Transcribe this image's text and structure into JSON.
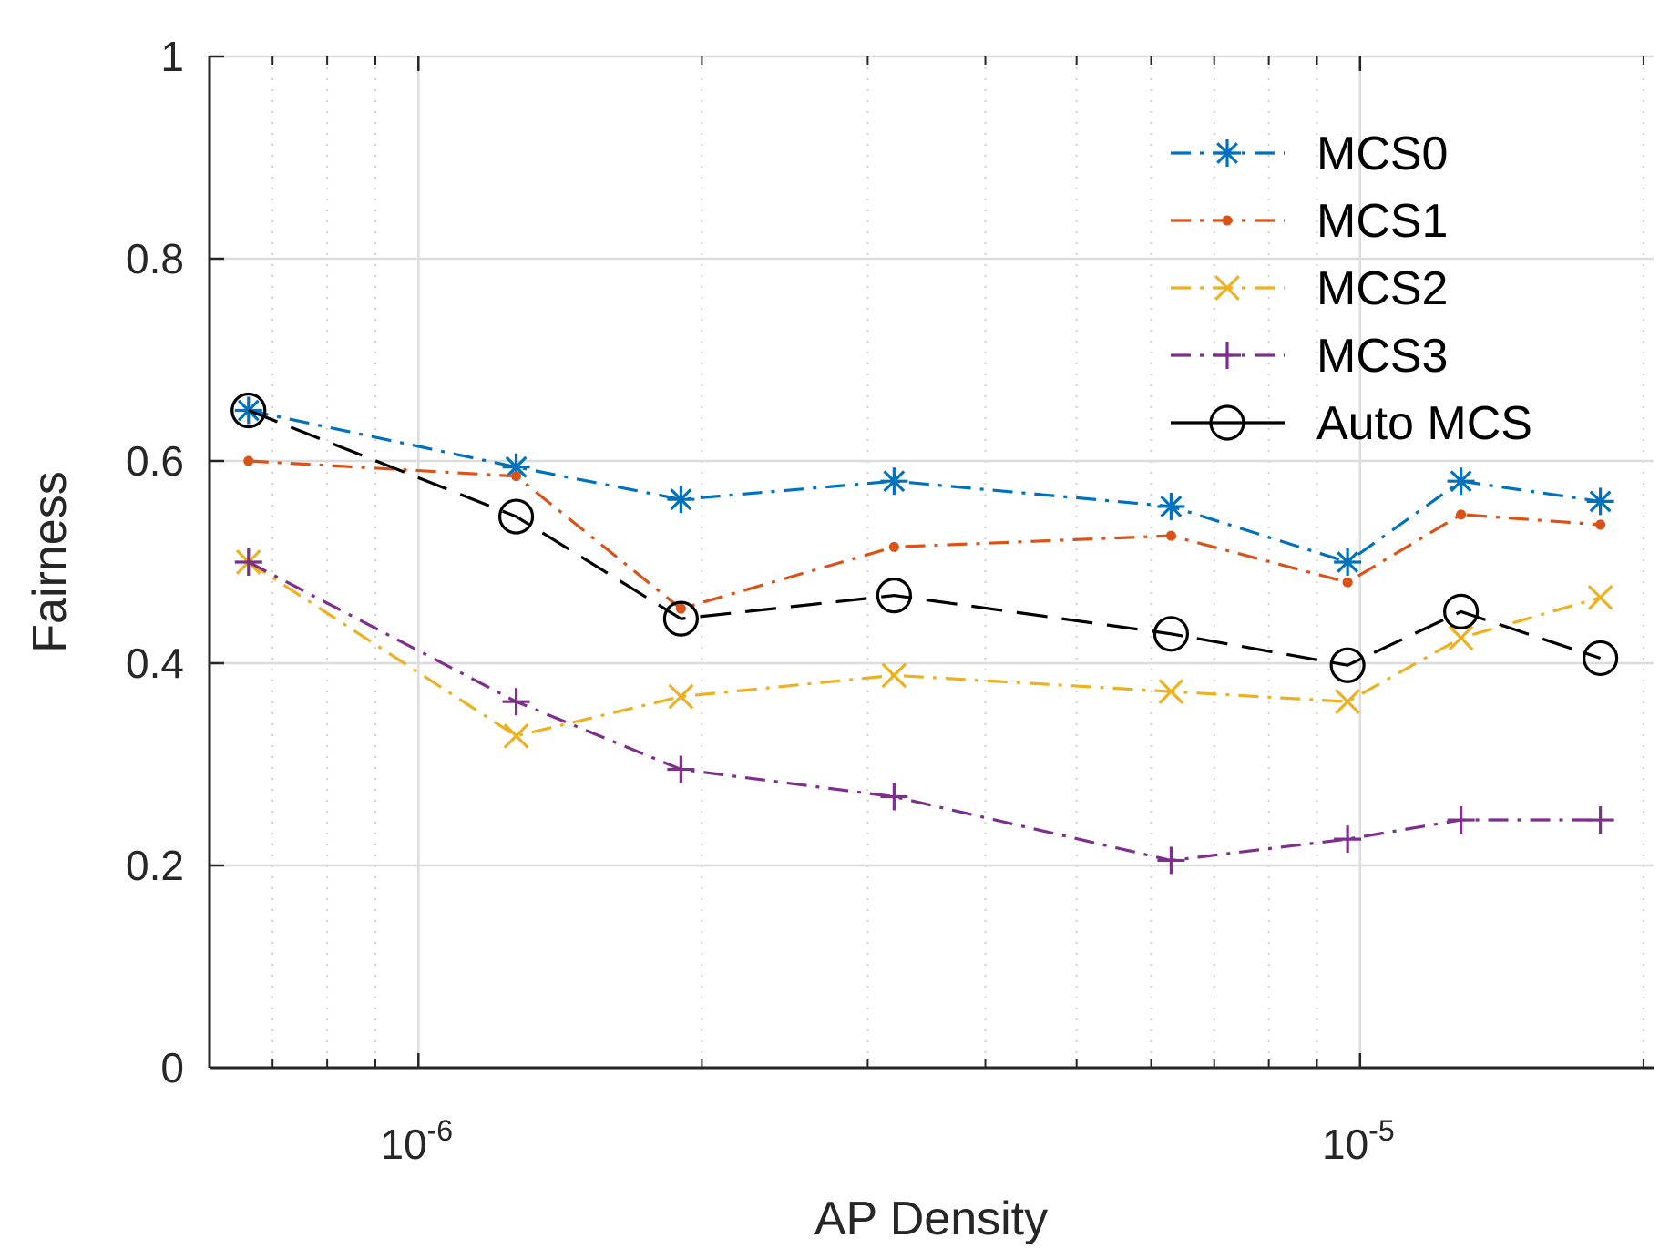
{
  "chart_data": {
    "type": "line",
    "xscale": "log",
    "xlabel": "AP Density",
    "ylabel": "Fairness",
    "xlim": [
      6e-07,
      2.05e-05
    ],
    "ylim": [
      0,
      1
    ],
    "grid": true,
    "legend_position": "top-right",
    "x": [
      6.6e-07,
      1.27e-06,
      1.9e-06,
      3.2e-06,
      6.3e-06,
      9.7e-06,
      1.28e-05,
      1.8e-05
    ],
    "xticks": [
      {
        "value": 1e-06,
        "base": "10",
        "exp": "-6"
      },
      {
        "value": 1e-05,
        "base": "10",
        "exp": "-5"
      }
    ],
    "yticks": [
      {
        "value": 0,
        "label": "0"
      },
      {
        "value": 0.2,
        "label": "0.2"
      },
      {
        "value": 0.4,
        "label": "0.4"
      },
      {
        "value": 0.6,
        "label": "0.6"
      },
      {
        "value": 0.8,
        "label": "0.8"
      },
      {
        "value": 1,
        "label": "1"
      }
    ],
    "series": [
      {
        "name": "MCS0",
        "color": "#0072BD",
        "dash": "dashdot",
        "marker": "asterisk",
        "values": [
          0.65,
          0.594,
          0.562,
          0.58,
          0.555,
          0.5,
          0.58,
          0.56
        ]
      },
      {
        "name": "MCS1",
        "color": "#D95319",
        "dash": "dashdot",
        "marker": "dot",
        "values": [
          0.6,
          0.585,
          0.454,
          0.515,
          0.526,
          0.48,
          0.547,
          0.537
        ]
      },
      {
        "name": "MCS2",
        "color": "#EDB120",
        "dash": "dashdot",
        "marker": "x",
        "values": [
          0.5,
          0.328,
          0.367,
          0.388,
          0.372,
          0.362,
          0.425,
          0.465
        ]
      },
      {
        "name": "MCS3",
        "color": "#7E2F8E",
        "dash": "dashdot",
        "marker": "plus",
        "values": [
          0.5,
          0.362,
          0.295,
          0.268,
          0.205,
          0.226,
          0.245,
          0.245
        ]
      },
      {
        "name": "Auto MCS",
        "color": "#000000",
        "dash": "dash",
        "marker": "circle",
        "values": [
          0.65,
          0.545,
          0.444,
          0.467,
          0.429,
          0.398,
          0.451,
          0.405
        ]
      }
    ]
  }
}
